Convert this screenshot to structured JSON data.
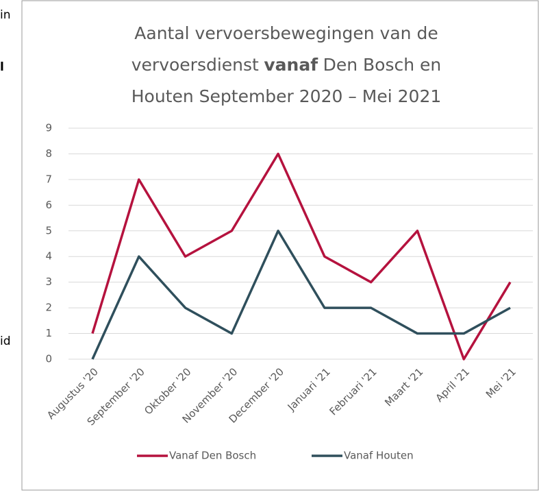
{
  "document_text": [
    "in",
    "l",
    "id"
  ],
  "chart_data": {
    "type": "line",
    "title": [
      [
        "Aantal vervoersbewegingen van de"
      ],
      [
        "vervoersdienst",
        "vanaf",
        "Den Bosch en"
      ],
      [
        "Houten September 2020 – Mei 2021"
      ]
    ],
    "categories": [
      "Augustus '20",
      "September '20",
      "Oktober '20",
      "November '20",
      "December '20",
      "Januari '21",
      "Februari '21",
      "Maart '21",
      "April '21",
      "Mei '21"
    ],
    "series": [
      {
        "name": "Vanaf Den Bosch",
        "color": "#b5123e",
        "values": [
          1,
          7,
          4,
          5,
          8,
          4,
          3,
          5,
          0,
          3
        ]
      },
      {
        "name": "Vanaf Houten",
        "color": "#2f4f5c",
        "values": [
          0,
          4,
          2,
          1,
          5,
          2,
          2,
          1,
          1,
          2
        ]
      }
    ],
    "ylim": [
      0,
      9
    ],
    "yticks": [
      0,
      1,
      2,
      3,
      4,
      5,
      6,
      7,
      8,
      9
    ],
    "grid": true,
    "legend": "bottom"
  }
}
